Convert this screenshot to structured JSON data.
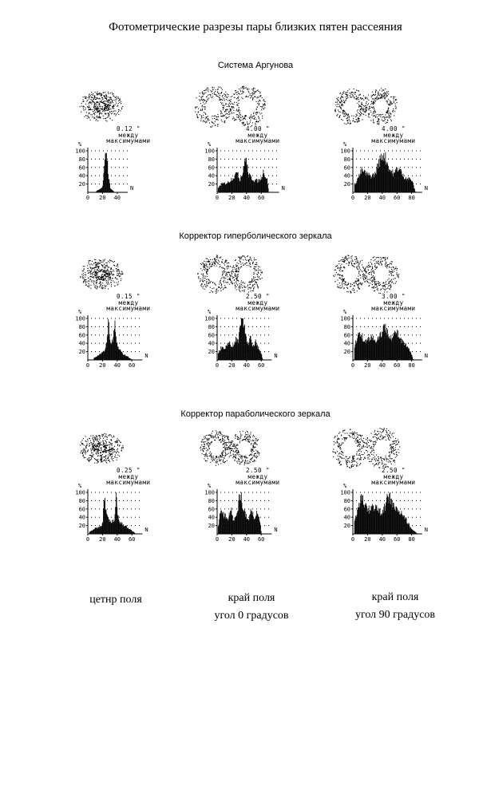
{
  "title": "Фотометрические разрезы пары близких пятен рассеяния",
  "common": {
    "y_unit": "%",
    "between": "между",
    "maxima": "максимумами",
    "x_axis_letter": "N"
  },
  "columns": [
    {
      "line1": "цетнр поля",
      "line2": ""
    },
    {
      "line1": "край поля",
      "line2": "угол 0 градусов"
    },
    {
      "line1": "край поля",
      "line2": "угол 90 градусов"
    }
  ],
  "sections": [
    {
      "title": "Система Аргунова"
    },
    {
      "title": "Корректор гиперболического зеркала"
    },
    {
      "title": "Корректор параболического зеркала"
    }
  ],
  "chart_data": [
    {
      "type": "bar",
      "section": 0,
      "column": 0,
      "separation_label": "0.12 \"",
      "pattern": "single-blob",
      "xlim": [
        0,
        50
      ],
      "ylim": [
        0,
        100
      ],
      "xticks": [
        0,
        20,
        40
      ],
      "yticks": [
        20,
        40,
        60,
        80,
        100
      ],
      "x_start": 10,
      "x_end": 37,
      "x": [
        10,
        12,
        14,
        16,
        18,
        20,
        22,
        24,
        26,
        28,
        30,
        32,
        34,
        36
      ],
      "y": [
        0,
        5,
        5,
        7,
        10,
        18,
        65,
        100,
        80,
        40,
        12,
        8,
        4,
        0
      ],
      "grid": true
    },
    {
      "type": "bar",
      "section": 0,
      "column": 1,
      "separation_label": "4.00 \"",
      "pattern": "two-rings",
      "xlim": [
        0,
        80
      ],
      "ylim": [
        0,
        100
      ],
      "xticks": [
        0,
        20,
        40,
        60
      ],
      "yticks": [
        20,
        40,
        60,
        80,
        100
      ],
      "x_start": 1,
      "x_end": 70,
      "x": [
        1,
        5,
        10,
        15,
        20,
        25,
        27,
        30,
        35,
        38,
        40,
        42,
        45,
        50,
        55,
        60,
        62,
        65,
        68,
        70
      ],
      "y": [
        10,
        20,
        22,
        25,
        35,
        42,
        60,
        30,
        50,
        90,
        70,
        45,
        38,
        30,
        28,
        35,
        55,
        40,
        30,
        0
      ],
      "grid": true
    },
    {
      "type": "bar",
      "section": 0,
      "column": 2,
      "separation_label": "4.00 \"",
      "pattern": "two-rings",
      "xlim": [
        0,
        90
      ],
      "ylim": [
        0,
        100
      ],
      "xticks": [
        0,
        20,
        40,
        60,
        80
      ],
      "yticks": [
        20,
        40,
        60,
        80,
        100
      ],
      "x_start": 2,
      "x_end": 85,
      "x": [
        2,
        8,
        12,
        18,
        24,
        30,
        34,
        38,
        42,
        46,
        50,
        56,
        60,
        64,
        68,
        74,
        80,
        85
      ],
      "y": [
        20,
        40,
        55,
        45,
        40,
        45,
        70,
        85,
        95,
        75,
        55,
        45,
        60,
        55,
        40,
        35,
        30,
        0
      ],
      "grid": true
    },
    {
      "type": "bar",
      "section": 1,
      "column": 0,
      "separation_label": "0.15 \"",
      "pattern": "single-blob",
      "xlim": [
        0,
        70
      ],
      "ylim": [
        0,
        100
      ],
      "xticks": [
        0,
        20,
        40,
        60
      ],
      "yticks": [
        20,
        40,
        60,
        80,
        100
      ],
      "x_start": 8,
      "x_end": 60,
      "x": [
        8,
        12,
        16,
        20,
        24,
        26,
        28,
        30,
        32,
        34,
        36,
        38,
        42,
        48,
        54,
        60
      ],
      "y": [
        5,
        10,
        15,
        20,
        30,
        60,
        100,
        45,
        40,
        55,
        95,
        50,
        25,
        15,
        8,
        0
      ],
      "grid": true
    },
    {
      "type": "bar",
      "section": 1,
      "column": 1,
      "separation_label": "2.50 \"",
      "pattern": "two-rings",
      "xlim": [
        0,
        70
      ],
      "ylim": [
        0,
        100
      ],
      "xticks": [
        0,
        20,
        40,
        60
      ],
      "yticks": [
        20,
        40,
        60,
        80,
        100
      ],
      "x_start": 1,
      "x_end": 62,
      "x": [
        1,
        5,
        10,
        15,
        20,
        25,
        28,
        30,
        32,
        35,
        38,
        42,
        45,
        48,
        52,
        55,
        58,
        62
      ],
      "y": [
        15,
        30,
        25,
        45,
        30,
        55,
        40,
        70,
        100,
        95,
        65,
        35,
        55,
        30,
        45,
        30,
        25,
        0
      ],
      "grid": true
    },
    {
      "type": "bar",
      "section": 1,
      "column": 2,
      "separation_label": "3.00 \"",
      "pattern": "two-rings",
      "xlim": [
        0,
        90
      ],
      "ylim": [
        0,
        100
      ],
      "xticks": [
        0,
        20,
        40,
        60,
        80
      ],
      "yticks": [
        20,
        40,
        60,
        80,
        100
      ],
      "x_start": 2,
      "x_end": 82,
      "x": [
        2,
        6,
        10,
        14,
        18,
        22,
        26,
        30,
        34,
        38,
        42,
        46,
        50,
        54,
        58,
        62,
        66,
        70,
        74,
        78,
        82
      ],
      "y": [
        30,
        60,
        70,
        50,
        45,
        55,
        60,
        45,
        55,
        65,
        80,
        75,
        60,
        55,
        70,
        60,
        45,
        40,
        30,
        20,
        0
      ],
      "grid": true
    },
    {
      "type": "bar",
      "section": 2,
      "column": 0,
      "separation_label": "0.25 \"",
      "pattern": "single-blob",
      "xlim": [
        0,
        70
      ],
      "ylim": [
        0,
        100
      ],
      "xticks": [
        0,
        20,
        40,
        60
      ],
      "yticks": [
        20,
        40,
        60,
        80,
        100
      ],
      "x_start": 2,
      "x_end": 65,
      "x": [
        2,
        6,
        10,
        14,
        18,
        20,
        22,
        24,
        26,
        30,
        34,
        36,
        38,
        40,
        42,
        46,
        50,
        54,
        58,
        62,
        65
      ],
      "y": [
        5,
        10,
        15,
        15,
        20,
        30,
        100,
        60,
        40,
        30,
        30,
        40,
        100,
        60,
        30,
        25,
        20,
        15,
        10,
        5,
        0
      ],
      "grid": true
    },
    {
      "type": "bar",
      "section": 2,
      "column": 1,
      "separation_label": "2.50 \"",
      "pattern": "two-rings",
      "xlim": [
        0,
        70
      ],
      "ylim": [
        0,
        100
      ],
      "xticks": [
        0,
        20,
        40,
        60
      ],
      "yticks": [
        20,
        40,
        60,
        80,
        100
      ],
      "x_start": 1,
      "x_end": 60,
      "x": [
        1,
        5,
        10,
        14,
        18,
        22,
        26,
        28,
        30,
        32,
        34,
        38,
        42,
        46,
        50,
        54,
        58,
        60
      ],
      "y": [
        20,
        60,
        45,
        35,
        65,
        30,
        45,
        60,
        95,
        100,
        70,
        50,
        35,
        60,
        40,
        50,
        30,
        0
      ],
      "grid": true
    },
    {
      "type": "bar",
      "section": 2,
      "column": 2,
      "separation_label": "2.50 \"",
      "pattern": "two-rings",
      "xlim": [
        0,
        90
      ],
      "ylim": [
        0,
        100
      ],
      "xticks": [
        0,
        20,
        40,
        60,
        80
      ],
      "yticks": [
        20,
        40,
        60,
        80,
        100
      ],
      "x_start": 2,
      "x_end": 88,
      "x": [
        2,
        6,
        10,
        14,
        18,
        22,
        26,
        30,
        34,
        38,
        42,
        46,
        50,
        54,
        58,
        62,
        66,
        70,
        74,
        78,
        82,
        88
      ],
      "y": [
        30,
        60,
        90,
        80,
        65,
        60,
        65,
        70,
        55,
        55,
        60,
        85,
        90,
        75,
        60,
        55,
        50,
        40,
        30,
        15,
        8,
        0
      ],
      "grid": true
    }
  ]
}
